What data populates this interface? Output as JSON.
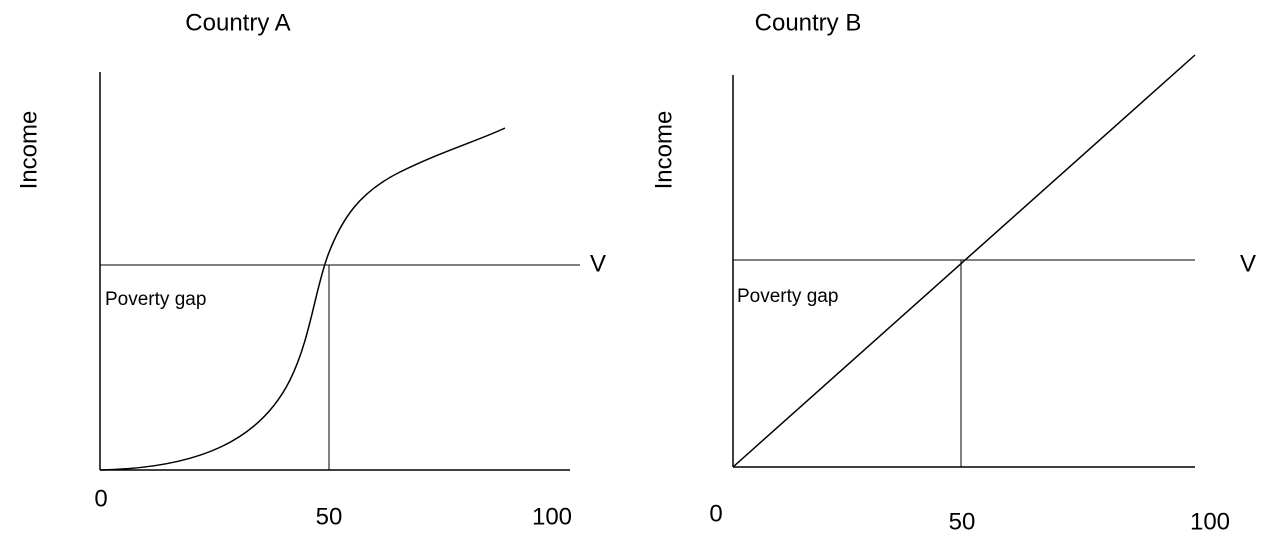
{
  "panels": [
    {
      "title": "Country A",
      "y_label": "Income",
      "line_label": "V",
      "region_label": "Poverty gap",
      "x_labels": [
        "0",
        "50",
        "100"
      ]
    },
    {
      "title": "Country B",
      "y_label": "Income",
      "line_label": "V",
      "region_label": "Poverty gap",
      "x_labels": [
        "0",
        "50",
        "100"
      ]
    }
  ]
}
